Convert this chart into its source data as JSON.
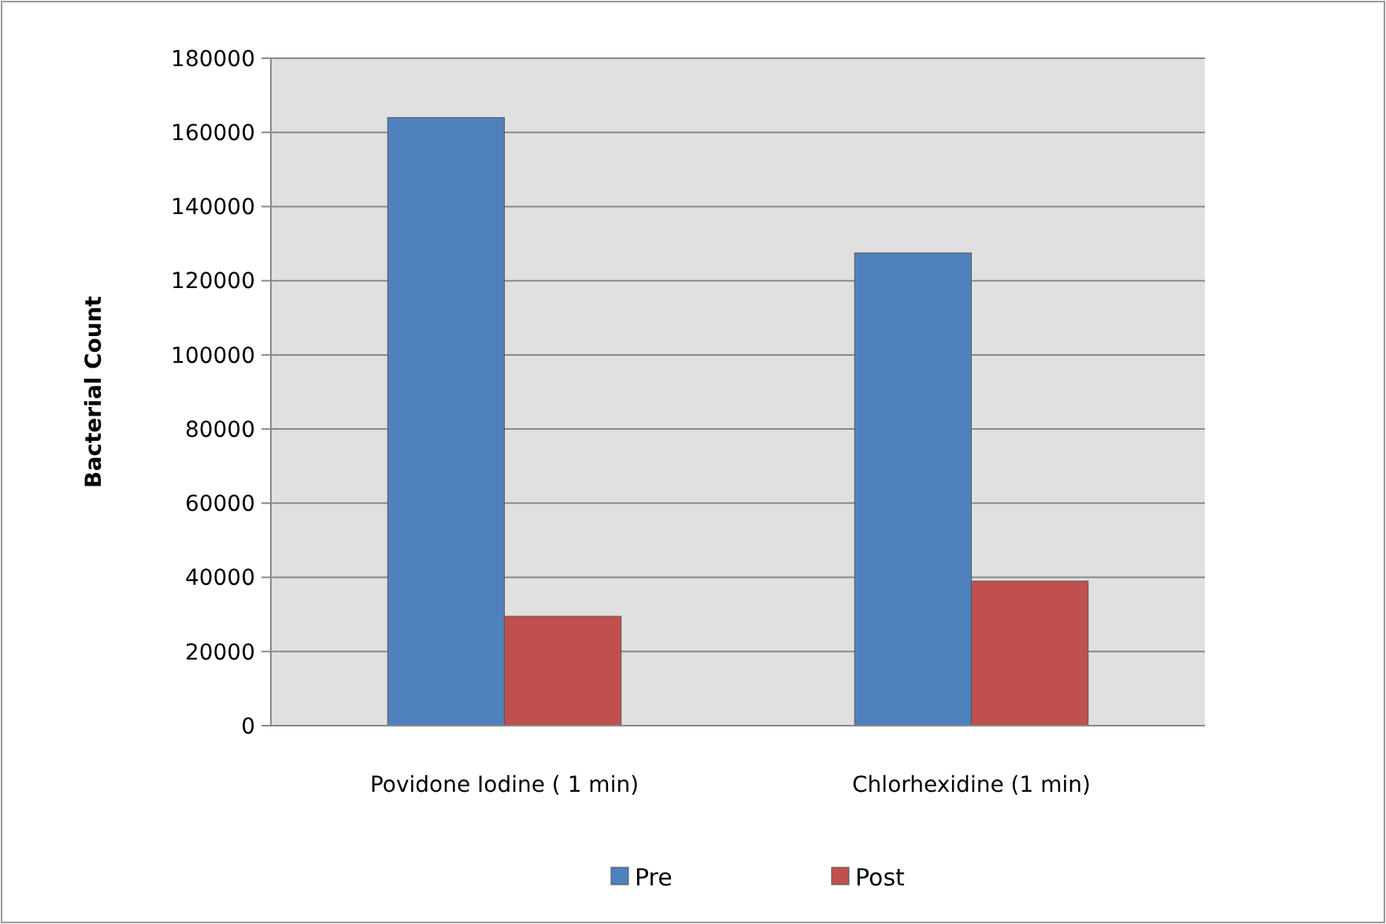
{
  "chart_data": {
    "type": "bar",
    "ylabel": "Bacterial Count",
    "categories": [
      "Povidone Iodine ( 1 min)",
      "Chlorhexidine (1 min)"
    ],
    "series": [
      {
        "name": "Pre",
        "color": "#4f81bd",
        "values": [
          164000,
          127500
        ]
      },
      {
        "name": "Post",
        "color": "#c0504d",
        "values": [
          29500,
          39000
        ]
      }
    ],
    "ylim": [
      0,
      180000
    ],
    "yticks": [
      0,
      20000,
      40000,
      60000,
      80000,
      100000,
      120000,
      140000,
      160000,
      180000
    ],
    "grid": "y",
    "legend": "bottom"
  }
}
